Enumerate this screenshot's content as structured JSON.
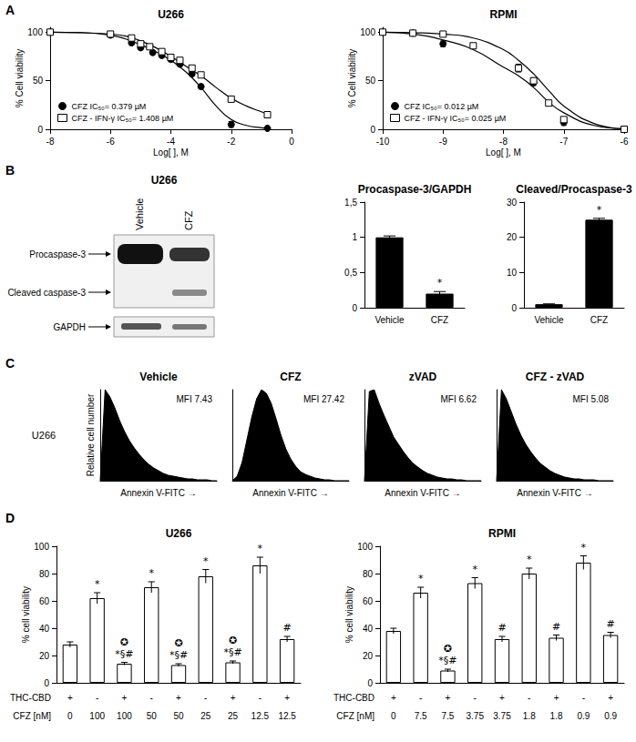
{
  "panel_labels": [
    "A",
    "B",
    "C",
    "D"
  ],
  "blot": {
    "title": "U266",
    "lanes": [
      "Vehicle",
      "CFZ"
    ],
    "rows": [
      "Procaspase-3",
      "Cleaved caspase-3",
      "GAPDH"
    ]
  },
  "chart_data": [
    {
      "type": "line",
      "title": "U266",
      "xlabel": "Log[ ], M",
      "ylabel": "% Cell viability",
      "xlim": [
        -8,
        0
      ],
      "xticks": [
        -8,
        -6,
        -4,
        -2,
        0
      ],
      "ylim": [
        0,
        105
      ],
      "yticks": [
        0,
        50,
        100
      ],
      "legend": "lower left",
      "series": [
        {
          "name": "CFZ IC₅₀= 0.379 µM",
          "color": "#000000",
          "marker": "circle",
          "x": [
            -8,
            -6,
            -5.3,
            -5,
            -4.6,
            -4.3,
            -4,
            -3.7,
            -3.3,
            -3,
            -2,
            -0.8
          ],
          "values": [
            100,
            97,
            89,
            84,
            79,
            76,
            72,
            67,
            57,
            44,
            5,
            1
          ],
          "errors": [
            1,
            1,
            2,
            2,
            2,
            2,
            2,
            2,
            2,
            2,
            3,
            1
          ],
          "fit": {
            "x": [
              -8,
              -7,
              -6,
              -5.5,
              -5,
              -4.5,
              -4,
              -3.5,
              -3,
              -2.5,
              -2,
              -1.5,
              -1,
              -0.8
            ],
            "values": [
              100,
              99.5,
              97,
              93,
              87,
              80,
              71,
              59,
              43,
              24,
              10,
              4,
              1.5,
              1
            ]
          }
        },
        {
          "name": "CFZ - IFN-γ IC₅₀= 1.408 µM",
          "color": "#ffffff",
          "marker": "square",
          "x": [
            -8,
            -6,
            -5.3,
            -5,
            -4.7,
            -4.3,
            -4,
            -3.7,
            -3.3,
            -3,
            -2,
            -0.8
          ],
          "values": [
            100,
            98,
            94,
            88,
            85,
            80,
            74,
            71,
            63,
            56,
            31,
            15
          ],
          "errors": [
            1,
            1,
            2,
            2,
            2,
            2,
            2,
            2,
            2,
            2,
            2,
            1
          ],
          "fit": {
            "x": [
              -8,
              -7,
              -6,
              -5.5,
              -5,
              -4.5,
              -4,
              -3.5,
              -3,
              -2.5,
              -2,
              -1.5,
              -1,
              -0.8
            ],
            "values": [
              100,
              99.6,
              98,
              96,
              91,
              84,
              75,
              65,
              55,
              43,
              32,
              24,
              18,
              16
            ]
          }
        }
      ]
    },
    {
      "type": "line",
      "title": "RPMI",
      "xlabel": "Log[ ], M",
      "ylabel": "% Cell viability",
      "xlim": [
        -10,
        -6
      ],
      "xticks": [
        -10,
        -9,
        -8,
        -7,
        -6
      ],
      "ylim": [
        0,
        105
      ],
      "yticks": [
        0,
        50,
        100
      ],
      "legend": "lower left",
      "series": [
        {
          "name": "CFZ IC₅₀= 0.012 µM",
          "color": "#000000",
          "marker": "circle",
          "x": [
            -10,
            -9.5,
            -9,
            -7.5,
            -7,
            -6
          ],
          "values": [
            100,
            99,
            88,
            48,
            7,
            0
          ],
          "errors": [
            1,
            1,
            3,
            3,
            3,
            0.5
          ],
          "fit": {
            "x": [
              -10,
              -9.5,
              -9,
              -8.5,
              -8,
              -7.75,
              -7.5,
              -7.25,
              -7,
              -6.5,
              -6
            ],
            "values": [
              100,
              98,
              92,
              82,
              64,
              55,
              43,
              28,
              17,
              4,
              0.5
            ]
          }
        },
        {
          "name": "CFZ - IFN-γ IC₅₀= 0.025 µM",
          "color": "#ffffff",
          "marker": "square",
          "x": [
            -10,
            -9.5,
            -9,
            -8.5,
            -7.75,
            -7.5,
            -7.25,
            -7,
            -6
          ],
          "values": [
            100,
            99,
            98,
            86,
            63,
            50,
            27,
            10,
            0
          ],
          "errors": [
            1,
            1,
            1,
            2,
            4,
            3,
            2,
            2,
            0.5
          ],
          "fit": {
            "x": [
              -10,
              -9.5,
              -9,
              -8.5,
              -8,
              -7.75,
              -7.5,
              -7.25,
              -7,
              -6.5,
              -6
            ],
            "values": [
              100,
              99.5,
              98,
              94,
              82,
              71,
              57,
              40,
              24,
              6,
              0.5
            ]
          }
        }
      ]
    },
    {
      "type": "bar",
      "title": "Procaspase-3/GAPDH",
      "categories": [
        "Vehicle",
        "CFZ"
      ],
      "values": [
        1,
        0.2
      ],
      "errors": [
        0.02,
        0.03
      ],
      "color": "#000000",
      "ylim": [
        0,
        1.5
      ],
      "yticks": [
        0,
        {
          "value": 0.5,
          "label": "0,5"
        },
        1,
        {
          "value": 1.5,
          "label": "1,5"
        }
      ],
      "annotations": [
        [],
        [
          "*"
        ]
      ]
    },
    {
      "type": "bar",
      "title": "Cleaved/Procaspase-3",
      "categories": [
        "Vehicle",
        "CFZ"
      ],
      "values": [
        1,
        25
      ],
      "errors": [
        0.1,
        0.4
      ],
      "color": "#000000",
      "ylim": [
        0,
        30
      ],
      "yticks": [
        0,
        10,
        20,
        30
      ],
      "annotations": [
        [],
        [
          "*"
        ]
      ]
    },
    {
      "type": "area",
      "title": "Vehicle",
      "side_label": "U266",
      "xlabel": "Annexin V-FITC →",
      "ylabel": "Relative cell number",
      "annotation": "MFI 7.43",
      "tick_labels": false,
      "xlim": [
        0,
        24
      ],
      "ylim": [
        0,
        100
      ],
      "color": "#000000",
      "x": [
        0,
        1,
        2,
        3,
        4,
        5,
        6,
        7,
        8,
        9,
        10,
        11,
        12,
        13,
        14,
        15,
        16,
        17,
        18,
        19,
        20,
        21,
        22,
        23,
        24
      ],
      "values": [
        0,
        100,
        92,
        80,
        66,
        54,
        44,
        36,
        29,
        23,
        18,
        14,
        11,
        8,
        6,
        5,
        4,
        3,
        2,
        2,
        1,
        1,
        1,
        0,
        0
      ]
    },
    {
      "type": "area",
      "title": "CFZ",
      "xlabel": "Annexin V-FITC →",
      "annotation": "MFI 27.42",
      "tick_labels": false,
      "xlim": [
        0,
        24
      ],
      "ylim": [
        0,
        100
      ],
      "color": "#000000",
      "x": [
        0,
        1,
        2,
        3,
        4,
        5,
        6,
        7,
        8,
        9,
        10,
        11,
        12,
        13,
        14,
        15,
        16,
        17,
        18,
        19,
        20,
        21,
        22,
        23,
        24
      ],
      "values": [
        0,
        5,
        20,
        45,
        70,
        90,
        100,
        96,
        85,
        68,
        50,
        35,
        24,
        16,
        10,
        7,
        5,
        3,
        2,
        1,
        1,
        0,
        0,
        0,
        0
      ]
    },
    {
      "type": "area",
      "title": "zVAD",
      "xlabel": "Annexin V-FITC →",
      "annotation": "MFI 6.62",
      "tick_labels": false,
      "xlim": [
        0,
        24
      ],
      "ylim": [
        0,
        100
      ],
      "color": "#000000",
      "x": [
        0,
        1,
        2,
        3,
        4,
        5,
        6,
        7,
        8,
        9,
        10,
        11,
        12,
        13,
        14,
        15,
        16,
        17,
        18,
        19,
        20,
        21,
        22,
        23,
        24
      ],
      "values": [
        0,
        98,
        100,
        85,
        72,
        60,
        48,
        40,
        32,
        25,
        19,
        15,
        11,
        8,
        6,
        4,
        3,
        2,
        2,
        1,
        1,
        0,
        0,
        0,
        0
      ]
    },
    {
      "type": "area",
      "title": "CFZ - zVAD",
      "xlabel": "Annexin V-FITC →",
      "annotation": "MFI 5.08",
      "tick_labels": false,
      "xlim": [
        0,
        24
      ],
      "ylim": [
        0,
        100
      ],
      "color": "#000000",
      "x": [
        0,
        1,
        2,
        3,
        4,
        5,
        6,
        7,
        8,
        9,
        10,
        11,
        12,
        13,
        14,
        15,
        16,
        17,
        18,
        19,
        20,
        21,
        22,
        23,
        24
      ],
      "values": [
        0,
        100,
        90,
        76,
        62,
        50,
        40,
        32,
        25,
        19,
        15,
        11,
        8,
        6,
        4,
        3,
        2,
        2,
        1,
        1,
        1,
        0,
        0,
        0,
        0
      ]
    },
    {
      "type": "bar",
      "title": "U266",
      "ylabel": "% cell viability",
      "ylim": [
        0,
        100
      ],
      "yticks": [
        0,
        20,
        40,
        60,
        80,
        100
      ],
      "rows": [
        {
          "label": "THC-CBD",
          "values": [
            "+",
            "-",
            "+",
            "-",
            "+",
            "-",
            "+",
            "-",
            "+"
          ]
        },
        {
          "label": "CFZ [nM]",
          "values": [
            0,
            100,
            100,
            50,
            50,
            25,
            25,
            12.5,
            12.5
          ]
        }
      ],
      "values": [
        28,
        62,
        14,
        70,
        13,
        78,
        15,
        86,
        32
      ],
      "errors": [
        2,
        4,
        1,
        4,
        1,
        5,
        1,
        6,
        2
      ],
      "color": "#ffffff",
      "annotations": [
        [],
        [
          "*"
        ],
        [
          "✪",
          "*§#"
        ],
        [
          "*"
        ],
        [
          "✪",
          "*§#"
        ],
        [
          "*"
        ],
        [
          "✪",
          "*§#"
        ],
        [
          "*"
        ],
        [
          "#"
        ]
      ]
    },
    {
      "type": "bar",
      "title": "RPMI",
      "ylabel": "% cell viability",
      "ylim": [
        0,
        100
      ],
      "yticks": [
        0,
        20,
        40,
        60,
        80,
        100
      ],
      "rows": [
        {
          "label": "THC-CBD",
          "values": [
            "+",
            "-",
            "+",
            "-",
            "+",
            "-",
            "+",
            "-",
            "+"
          ]
        },
        {
          "label": "CFZ [nM]",
          "values": [
            0,
            7.5,
            7.5,
            3.75,
            3.75,
            1.8,
            1.8,
            0.9,
            0.9
          ]
        }
      ],
      "values": [
        38,
        66,
        9,
        73,
        32,
        80,
        33,
        88,
        35
      ],
      "errors": [
        2,
        4,
        1,
        4,
        2,
        4,
        2,
        5,
        2
      ],
      "color": "#ffffff",
      "annotations": [
        [],
        [
          "*"
        ],
        [
          "✪",
          "*§#"
        ],
        [
          "*"
        ],
        [
          "#"
        ],
        [
          "*"
        ],
        [
          "#"
        ],
        [
          "*"
        ],
        [
          "#"
        ]
      ]
    }
  ]
}
